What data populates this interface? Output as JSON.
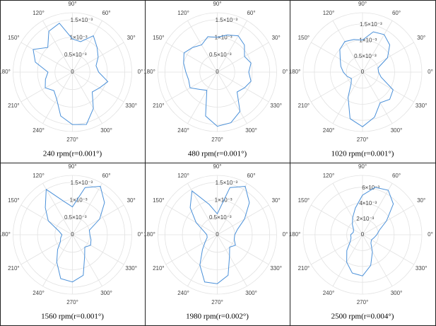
{
  "chart_data": [
    {
      "type": "polar",
      "title": "240 rpm(r=0.001°)",
      "color": "#4a90d9",
      "theta": [
        0,
        15,
        30,
        45,
        60,
        75,
        90,
        105,
        120,
        135,
        150,
        165,
        180,
        195,
        210,
        225,
        240,
        255,
        270,
        285,
        300,
        315,
        330,
        345
      ],
      "values": [
        0.00075,
        0.0007,
        0.00085,
        0.001,
        0.0012,
        0.0009,
        0.00095,
        0.00145,
        0.00135,
        0.001,
        0.0013,
        0.0011,
        0.0007,
        0.0008,
        0.0009,
        0.00075,
        0.0009,
        0.0013,
        0.0015,
        0.00155,
        0.0012,
        0.0008,
        0.0009,
        0.00105
      ],
      "rlim": [
        0,
        0.0017
      ],
      "rticks": [
        0,
        {
          "value": 0.0005,
          "label": "0.5×10⁻³"
        },
        {
          "value": 0.001,
          "label": "1×10⁻³"
        },
        {
          "value": 0.0015,
          "label": "1.5×10⁻³"
        }
      ],
      "thetaticks": [
        {
          "value": 0,
          "label": "0°"
        },
        {
          "value": 30,
          "label": "30°"
        },
        {
          "value": 60,
          "label": "60°"
        },
        {
          "value": 90,
          "label": "90°"
        },
        {
          "value": 120,
          "label": "120°"
        },
        {
          "value": 150,
          "label": "150°"
        },
        {
          "value": 180,
          "label": "180°"
        },
        {
          "value": 210,
          "label": "210°"
        },
        {
          "value": 240,
          "label": "240°"
        },
        {
          "value": 270,
          "label": "270°"
        },
        {
          "value": 300,
          "label": "300°"
        },
        {
          "value": 330,
          "label": "330°"
        }
      ]
    },
    {
      "type": "polar",
      "title": "480 rpm(r=0.001°)",
      "color": "#4a90d9",
      "theta": [
        0,
        15,
        30,
        45,
        60,
        75,
        90,
        105,
        120,
        135,
        150,
        165,
        180,
        195,
        210,
        225,
        240,
        255,
        270,
        285,
        300,
        315,
        330,
        345
      ],
      "values": [
        0.0009,
        0.001,
        0.0009,
        0.0011,
        0.0012,
        0.0011,
        0.001,
        0.00105,
        0.0009,
        0.001,
        0.0011,
        0.001,
        0.0009,
        0.00085,
        0.0009,
        0.0007,
        0.0006,
        0.0013,
        0.00155,
        0.0015,
        0.0013,
        0.0008,
        0.0009,
        0.001
      ],
      "rlim": [
        0,
        0.0017
      ],
      "rticks": [
        0,
        {
          "value": 0.0005,
          "label": "0.5×10⁻³"
        },
        {
          "value": 0.001,
          "label": "1×10⁻³"
        },
        {
          "value": 0.0015,
          "label": "1.5×10⁻³"
        }
      ],
      "thetaticks": [
        {
          "value": 0,
          "label": "0°"
        },
        {
          "value": 30,
          "label": "30°"
        },
        {
          "value": 60,
          "label": "60°"
        },
        {
          "value": 90,
          "label": "90°"
        },
        {
          "value": 120,
          "label": "120°"
        },
        {
          "value": 150,
          "label": "150°"
        },
        {
          "value": 180,
          "label": "180°"
        },
        {
          "value": 210,
          "label": "210°"
        },
        {
          "value": 240,
          "label": "240°"
        },
        {
          "value": 270,
          "label": "270°"
        },
        {
          "value": 300,
          "label": "300°"
        },
        {
          "value": 330,
          "label": "330°"
        }
      ]
    },
    {
      "type": "polar",
      "title": "1020 rpm(r=0.001°)",
      "color": "#4a90d9",
      "theta": [
        0,
        15,
        30,
        45,
        60,
        75,
        90,
        105,
        120,
        135,
        150,
        165,
        180,
        195,
        210,
        225,
        240,
        255,
        270,
        285,
        300,
        315,
        330,
        345
      ],
      "values": [
        0.0005,
        0.0005,
        0.0009,
        0.0012,
        0.00135,
        0.0013,
        0.001,
        0.00105,
        0.0011,
        0.001,
        0.0008,
        0.0007,
        0.0006,
        0.0005,
        0.0004,
        0.0005,
        0.0009,
        0.0015,
        0.0017,
        0.00145,
        0.0011,
        0.0012,
        0.0011,
        0.0006
      ],
      "rlim": [
        0,
        0.00185
      ],
      "rticks": [
        0,
        {
          "value": 0.0005,
          "label": "0.5×10⁻³"
        },
        {
          "value": 0.001,
          "label": "1×10⁻³"
        },
        {
          "value": 0.0015,
          "label": "1.5×10⁻³"
        }
      ],
      "thetaticks": [
        {
          "value": 0,
          "label": "0°"
        },
        {
          "value": 30,
          "label": "30°"
        },
        {
          "value": 60,
          "label": "60°"
        },
        {
          "value": 90,
          "label": "90°"
        },
        {
          "value": 120,
          "label": "120°"
        },
        {
          "value": 150,
          "label": "150°"
        },
        {
          "value": 180,
          "label": "180°"
        },
        {
          "value": 210,
          "label": "210°"
        },
        {
          "value": 240,
          "label": "240°"
        },
        {
          "value": 270,
          "label": "270°"
        },
        {
          "value": 300,
          "label": "300°"
        },
        {
          "value": 330,
          "label": "330°"
        }
      ]
    },
    {
      "type": "polar",
      "title": "1560 rpm(r=0.001°)",
      "color": "#4a90d9",
      "theta": [
        0,
        15,
        30,
        45,
        60,
        75,
        90,
        105,
        120,
        135,
        150,
        165,
        180,
        195,
        210,
        225,
        240,
        255,
        270,
        285,
        300,
        315,
        330,
        345
      ],
      "values": [
        0.0005,
        0.0005,
        0.0009,
        0.0013,
        0.0016,
        0.0014,
        0.0008,
        0.001,
        0.0015,
        0.0011,
        0.0008,
        0.0004,
        0.0003,
        0.00035,
        0.0004,
        0.0006,
        0.0009,
        0.0013,
        0.00135,
        0.0012,
        0.0007,
        0.0005,
        0.0006,
        0.00055
      ],
      "rlim": [
        0,
        0.0017
      ],
      "rticks": [
        0,
        {
          "value": 0.0005,
          "label": "0.5×10⁻³"
        },
        {
          "value": 0.001,
          "label": "1×10⁻³"
        },
        {
          "value": 0.0015,
          "label": "1.5×10⁻³"
        }
      ],
      "thetaticks": [
        {
          "value": 0,
          "label": "0°"
        },
        {
          "value": 30,
          "label": "30°"
        },
        {
          "value": 60,
          "label": "60°"
        },
        {
          "value": 90,
          "label": "90°"
        },
        {
          "value": 120,
          "label": "120°"
        },
        {
          "value": 150,
          "label": "150°"
        },
        {
          "value": 180,
          "label": "180°"
        },
        {
          "value": 210,
          "label": "210°"
        },
        {
          "value": 240,
          "label": "240°"
        },
        {
          "value": 270,
          "label": "270°"
        },
        {
          "value": 300,
          "label": "300°"
        },
        {
          "value": 330,
          "label": "330°"
        }
      ]
    },
    {
      "type": "polar",
      "title": "1980 rpm(r=0.002°)",
      "color": "#4a90d9",
      "theta": [
        0,
        15,
        30,
        45,
        60,
        75,
        90,
        105,
        120,
        135,
        150,
        165,
        180,
        195,
        210,
        225,
        240,
        255,
        270,
        285,
        300,
        315,
        330,
        345
      ],
      "values": [
        0.0005,
        0.0006,
        0.0009,
        0.0013,
        0.0016,
        0.0014,
        0.0006,
        0.0009,
        0.00145,
        0.0011,
        0.0007,
        0.0004,
        0.0003,
        0.0003,
        0.0004,
        0.0006,
        0.001,
        0.0014,
        0.0014,
        0.0012,
        0.0007,
        0.0005,
        0.0006,
        0.0005
      ],
      "rlim": [
        0,
        0.0017
      ],
      "rticks": [
        0,
        {
          "value": 0.0005,
          "label": "0.5×10⁻³"
        },
        {
          "value": 0.001,
          "label": "1×10⁻³"
        },
        {
          "value": 0.0015,
          "label": "1.5×10⁻³"
        }
      ],
      "thetaticks": [
        {
          "value": 0,
          "label": "0°"
        },
        {
          "value": 30,
          "label": "30°"
        },
        {
          "value": 60,
          "label": "60°"
        },
        {
          "value": 90,
          "label": "90°"
        },
        {
          "value": 120,
          "label": "120°"
        },
        {
          "value": 150,
          "label": "150°"
        },
        {
          "value": 180,
          "label": "180°"
        },
        {
          "value": 210,
          "label": "210°"
        },
        {
          "value": 240,
          "label": "240°"
        },
        {
          "value": 270,
          "label": "270°"
        },
        {
          "value": 300,
          "label": "300°"
        },
        {
          "value": 330,
          "label": "330°"
        }
      ]
    },
    {
      "type": "polar",
      "title": "2500 rpm(r=0.004°)",
      "color": "#4a90d9",
      "theta": [
        0,
        15,
        30,
        45,
        60,
        75,
        90,
        105,
        120,
        135,
        150,
        165,
        180,
        195,
        210,
        225,
        240,
        255,
        270,
        285,
        300,
        315,
        330,
        345
      ],
      "values": [
        0.0018,
        0.0022,
        0.0035,
        0.0055,
        0.0065,
        0.0062,
        0.005,
        0.0035,
        0.0025,
        0.0018,
        0.0013,
        0.0012,
        0.0015,
        0.0015,
        0.0018,
        0.0028,
        0.004,
        0.005,
        0.0052,
        0.004,
        0.0025,
        0.0015,
        0.0013,
        0.0015
      ],
      "rlim": [
        0,
        0.0075
      ],
      "rticks": [
        0,
        {
          "value": 0.002,
          "label": "2×10⁻³"
        },
        {
          "value": 0.004,
          "label": "4×10⁻³"
        },
        {
          "value": 0.006,
          "label": "6×10⁻³"
        }
      ],
      "thetaticks": [
        {
          "value": 0,
          "label": "0°"
        },
        {
          "value": 30,
          "label": "30°"
        },
        {
          "value": 60,
          "label": "60°"
        },
        {
          "value": 90,
          "label": "90°"
        },
        {
          "value": 120,
          "label": "120°"
        },
        {
          "value": 150,
          "label": "150°"
        },
        {
          "value": 180,
          "label": "180°"
        },
        {
          "value": 210,
          "label": "210°"
        },
        {
          "value": 240,
          "label": "240°"
        },
        {
          "value": 270,
          "label": "270°"
        },
        {
          "value": 300,
          "label": "300°"
        },
        {
          "value": 330,
          "label": "330°"
        }
      ]
    }
  ]
}
